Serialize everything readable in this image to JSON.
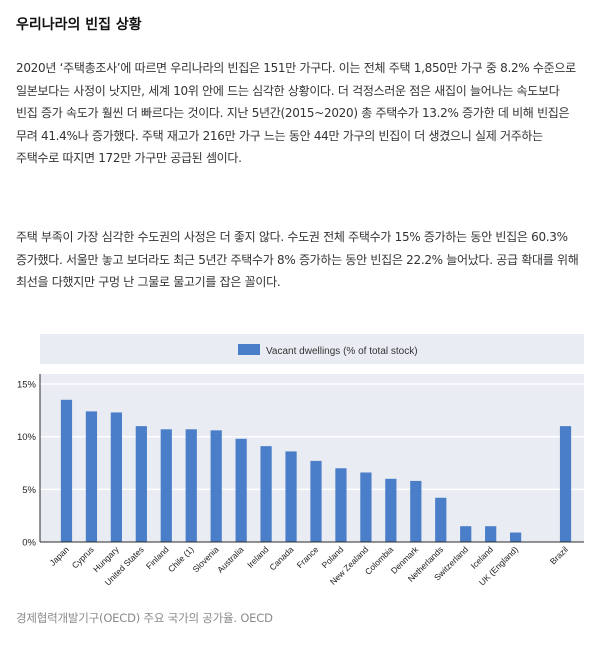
{
  "article": {
    "heading": "우리나라의 빈집 상황",
    "paragraph1": "2020년 ‘주택총조사’에 따르면 우리나라의 빈집은 151만 가구다. 이는 전체 주택 1,850만 가구 중 8.2% 수준으로 일본보다는 사정이 낫지만, 세계 10위 안에 드는 심각한 상황이다. 더 걱정스러운 점은 새집이 늘어나는 속도보다 빈집 증가 속도가 훨씬 더 빠르다는 것이다. 지난 5년간(2015~2020) 총 주택수가 13.2% 증가한 데 비해 빈집은 무려 41.4%나 증가했다. 주택 재고가 216만 가구 느는 동안 44만 가구의 빈집이 더 생겼으니 실제 거주하는 주택수로 따지면 172만 가구만 공급된 셈이다.",
    "paragraph2": "주택 부족이 가장 심각한 수도권의 사정은 더 좋지 않다. 수도권 전체 주택수가 15% 증가하는 동안 빈집은 60.3% 증가했다. 서울만 놓고 보더라도 최근 5년간 주택수가 8% 증가하는 동안 빈집은 22.2% 늘어났다. 공급 확대를 위해 최선을 다했지만 구멍 난 그물로 물고기를 잡은 꼴이다.",
    "caption": "경제협력개발기구(OECD) 주요 국가의 공가율. OECD"
  },
  "chart_data": {
    "type": "bar",
    "legend": "Vacant dwellings (% of total stock)",
    "legend_position": "top",
    "categories": [
      "Japan",
      "Cyprus",
      "Hungary",
      "United States",
      "Finland",
      "Chile (1)",
      "Slovenia",
      "Australia",
      "Ireland",
      "Canada",
      "France",
      "Poland",
      "New Zealand",
      "Colombia",
      "Denmark",
      "Netherlands",
      "Switzerland",
      "Iceland",
      "UK (England)",
      "Brazil"
    ],
    "values": [
      13.5,
      12.4,
      12.3,
      11.0,
      10.7,
      10.7,
      10.6,
      9.8,
      9.1,
      8.6,
      7.7,
      7.0,
      6.6,
      6.0,
      5.8,
      4.2,
      1.5,
      1.5,
      0.9,
      11.0
    ],
    "gap_before": [
      "Brazil"
    ],
    "ylim": [
      0,
      15
    ],
    "yticks": [
      0,
      5,
      10,
      15
    ],
    "ytick_labels": [
      "0%",
      "5%",
      "10%",
      "15%"
    ],
    "grid": true,
    "colors": {
      "bar": "#4a7ec9",
      "plot_bg": "#e9ecf2",
      "grid": "#ffffff",
      "axis": "#2b2b2b"
    }
  }
}
